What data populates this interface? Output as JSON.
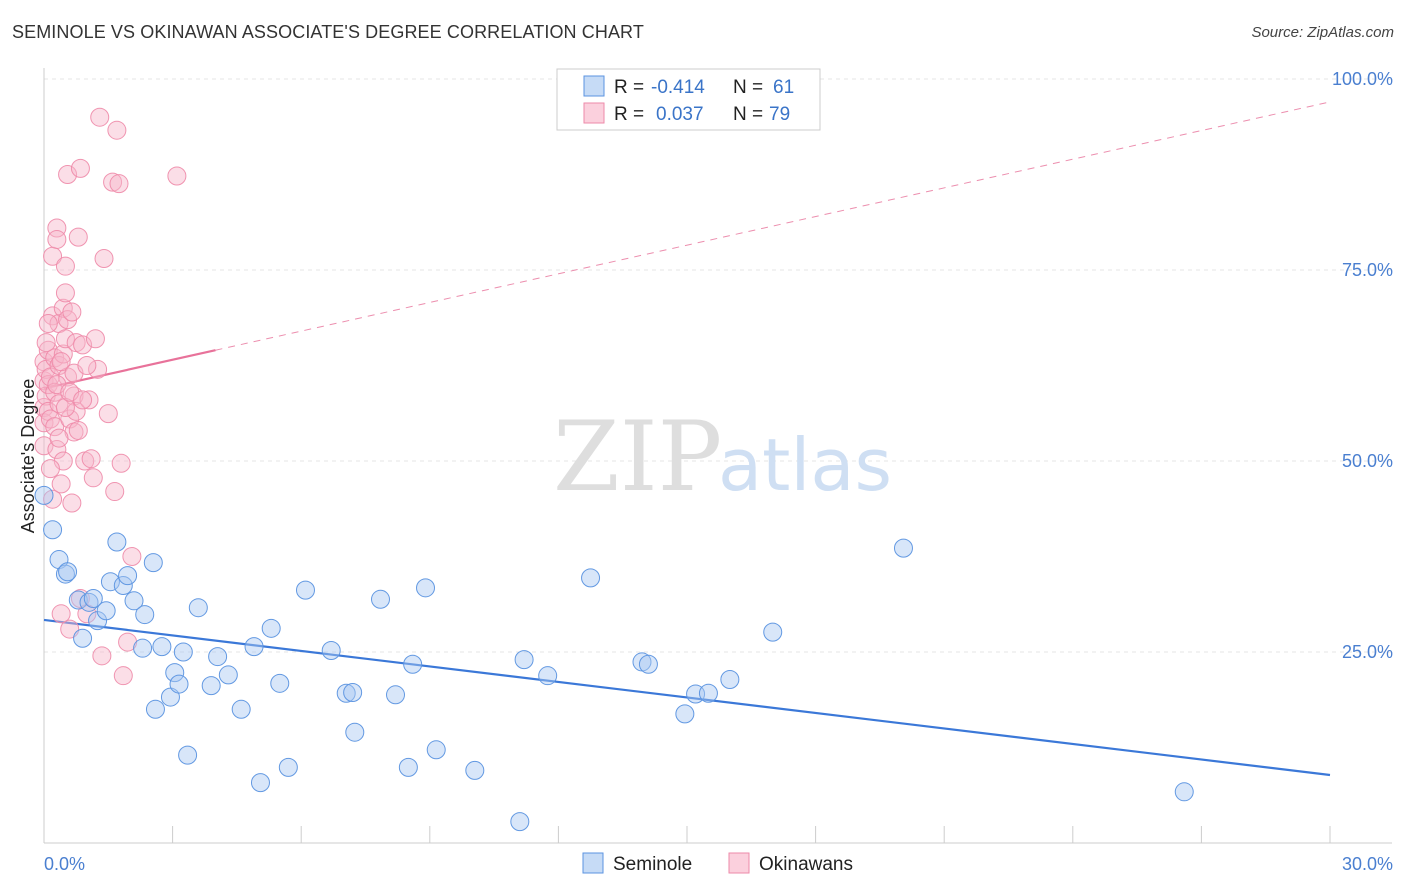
{
  "header": {
    "title": "SEMINOLE VS OKINAWAN ASSOCIATE'S DEGREE CORRELATION CHART",
    "source": "Source: ZipAtlas.com"
  },
  "watermark": {
    "zip": "ZIP",
    "atlas": "atlas"
  },
  "legend": {
    "r_label": "R =",
    "n_label": "N =",
    "rows": [
      {
        "name": "Seminole",
        "r": "-0.414",
        "n": "61"
      },
      {
        "name": "Okinawans",
        "r": "0.037",
        "n": "79"
      }
    ]
  },
  "chart_data": {
    "type": "scatter",
    "title": "SEMINOLE VS OKINAWAN ASSOCIATE'S DEGREE CORRELATION CHART",
    "xlabel": "",
    "ylabel": "Associate's Degree",
    "xlim": [
      0,
      30
    ],
    "ylim": [
      0,
      100
    ],
    "x_tick_labels": [
      "0.0%",
      "30.0%"
    ],
    "y_ticks": [
      25,
      50,
      75,
      100
    ],
    "y_tick_labels": [
      "25.0%",
      "50.0%",
      "75.0%",
      "100.0%"
    ],
    "grid": true,
    "legend_position": "top-center",
    "colors": {
      "seminole": "#5b93e0",
      "okinawans": "#ee8aa9",
      "seminole_line": "#3b78d8",
      "okinawans_line": "#e8729a"
    },
    "series": [
      {
        "name": "Seminole",
        "r": -0.414,
        "n": 61,
        "trend": {
          "x": [
            0,
            30
          ],
          "y": [
            29.2,
            8.9
          ],
          "style": "solid"
        },
        "points": [
          [
            0.0,
            45.5
          ],
          [
            0.2,
            41.0
          ],
          [
            0.35,
            37.1
          ],
          [
            0.5,
            35.2
          ],
          [
            0.55,
            35.5
          ],
          [
            0.8,
            31.8
          ],
          [
            0.9,
            26.8
          ],
          [
            1.05,
            31.5
          ],
          [
            1.15,
            32.0
          ],
          [
            1.25,
            29.1
          ],
          [
            1.45,
            30.4
          ],
          [
            1.55,
            34.2
          ],
          [
            1.7,
            39.4
          ],
          [
            1.85,
            33.7
          ],
          [
            1.95,
            35.0
          ],
          [
            2.1,
            31.7
          ],
          [
            2.3,
            25.5
          ],
          [
            2.35,
            29.9
          ],
          [
            2.55,
            36.7
          ],
          [
            2.6,
            17.5
          ],
          [
            2.75,
            25.7
          ],
          [
            2.95,
            19.1
          ],
          [
            3.05,
            22.3
          ],
          [
            3.15,
            20.8
          ],
          [
            3.25,
            25.0
          ],
          [
            3.35,
            11.5
          ],
          [
            3.6,
            30.8
          ],
          [
            3.9,
            20.6
          ],
          [
            4.05,
            24.4
          ],
          [
            4.3,
            22.0
          ],
          [
            4.6,
            17.5
          ],
          [
            4.9,
            25.7
          ],
          [
            5.05,
            7.9
          ],
          [
            5.3,
            28.1
          ],
          [
            5.5,
            20.9
          ],
          [
            5.7,
            9.9
          ],
          [
            6.1,
            33.1
          ],
          [
            6.7,
            25.2
          ],
          [
            7.05,
            19.6
          ],
          [
            7.2,
            19.7
          ],
          [
            7.25,
            14.5
          ],
          [
            7.85,
            31.9
          ],
          [
            8.2,
            19.4
          ],
          [
            8.5,
            9.9
          ],
          [
            8.6,
            23.4
          ],
          [
            8.9,
            33.4
          ],
          [
            9.15,
            12.2
          ],
          [
            10.05,
            9.5
          ],
          [
            11.1,
            2.8
          ],
          [
            11.2,
            24.0
          ],
          [
            11.75,
            21.9
          ],
          [
            12.75,
            34.7
          ],
          [
            13.95,
            23.7
          ],
          [
            14.1,
            23.4
          ],
          [
            14.95,
            16.9
          ],
          [
            15.2,
            19.5
          ],
          [
            15.5,
            19.6
          ],
          [
            16.0,
            21.4
          ],
          [
            17.0,
            27.6
          ],
          [
            20.05,
            38.6
          ],
          [
            26.6,
            6.7
          ]
        ]
      },
      {
        "name": "Okinawans",
        "r": 0.037,
        "n": 79,
        "trend": {
          "x": [
            0,
            4.0
          ],
          "y": [
            59.5,
            64.5
          ],
          "style": "solid",
          "extended": {
            "x": [
              4.0,
              30
            ],
            "y": [
              64.5,
              97.0
            ],
            "style": "dashed"
          }
        },
        "points": [
          [
            0.0,
            63.0
          ],
          [
            0.0,
            60.5
          ],
          [
            0.0,
            57.0
          ],
          [
            0.0,
            55.0
          ],
          [
            0.0,
            52.0
          ],
          [
            0.05,
            62.0
          ],
          [
            0.05,
            58.5
          ],
          [
            0.1,
            64.5
          ],
          [
            0.1,
            60.0
          ],
          [
            0.1,
            56.5
          ],
          [
            0.15,
            61.0
          ],
          [
            0.15,
            55.5
          ],
          [
            0.2,
            69.0
          ],
          [
            0.2,
            76.8
          ],
          [
            0.25,
            63.5
          ],
          [
            0.25,
            59.0
          ],
          [
            0.25,
            54.5
          ],
          [
            0.3,
            80.5
          ],
          [
            0.3,
            79.0
          ],
          [
            0.3,
            51.5
          ],
          [
            0.35,
            68.0
          ],
          [
            0.35,
            62.5
          ],
          [
            0.35,
            57.5
          ],
          [
            0.4,
            47.0
          ],
          [
            0.4,
            30.0
          ],
          [
            0.45,
            70.0
          ],
          [
            0.45,
            64.0
          ],
          [
            0.45,
            50.0
          ],
          [
            0.5,
            75.5
          ],
          [
            0.5,
            72.0
          ],
          [
            0.5,
            66.0
          ],
          [
            0.55,
            87.5
          ],
          [
            0.55,
            68.5
          ],
          [
            0.55,
            61.0
          ],
          [
            0.6,
            55.5
          ],
          [
            0.6,
            28.0
          ],
          [
            0.65,
            44.5
          ],
          [
            0.65,
            69.5
          ],
          [
            0.7,
            58.5
          ],
          [
            0.7,
            53.8
          ],
          [
            0.75,
            56.5
          ],
          [
            0.75,
            65.5
          ],
          [
            0.8,
            79.3
          ],
          [
            0.85,
            88.3
          ],
          [
            0.85,
            32.0
          ],
          [
            0.9,
            65.2
          ],
          [
            0.95,
            50.0
          ],
          [
            1.0,
            30.0
          ],
          [
            1.05,
            58.0
          ],
          [
            1.1,
            50.3
          ],
          [
            1.15,
            47.8
          ],
          [
            1.2,
            66.0
          ],
          [
            1.25,
            62.0
          ],
          [
            1.3,
            95.0
          ],
          [
            1.35,
            24.5
          ],
          [
            1.4,
            76.5
          ],
          [
            1.5,
            56.2
          ],
          [
            1.6,
            86.5
          ],
          [
            1.65,
            46.0
          ],
          [
            1.7,
            93.3
          ],
          [
            1.75,
            86.3
          ],
          [
            1.8,
            49.7
          ],
          [
            1.85,
            21.9
          ],
          [
            1.95,
            26.3
          ],
          [
            2.05,
            37.5
          ],
          [
            0.05,
            65.5
          ],
          [
            0.1,
            68.0
          ],
          [
            0.2,
            45.0
          ],
          [
            0.3,
            60.0
          ],
          [
            0.4,
            63.0
          ],
          [
            0.5,
            57.0
          ],
          [
            0.6,
            59.0
          ],
          [
            0.7,
            61.5
          ],
          [
            0.8,
            54.0
          ],
          [
            0.9,
            58.0
          ],
          [
            1.0,
            62.5
          ],
          [
            0.15,
            49.0
          ],
          [
            0.35,
            53.0
          ],
          [
            3.1,
            87.3
          ]
        ]
      }
    ]
  }
}
